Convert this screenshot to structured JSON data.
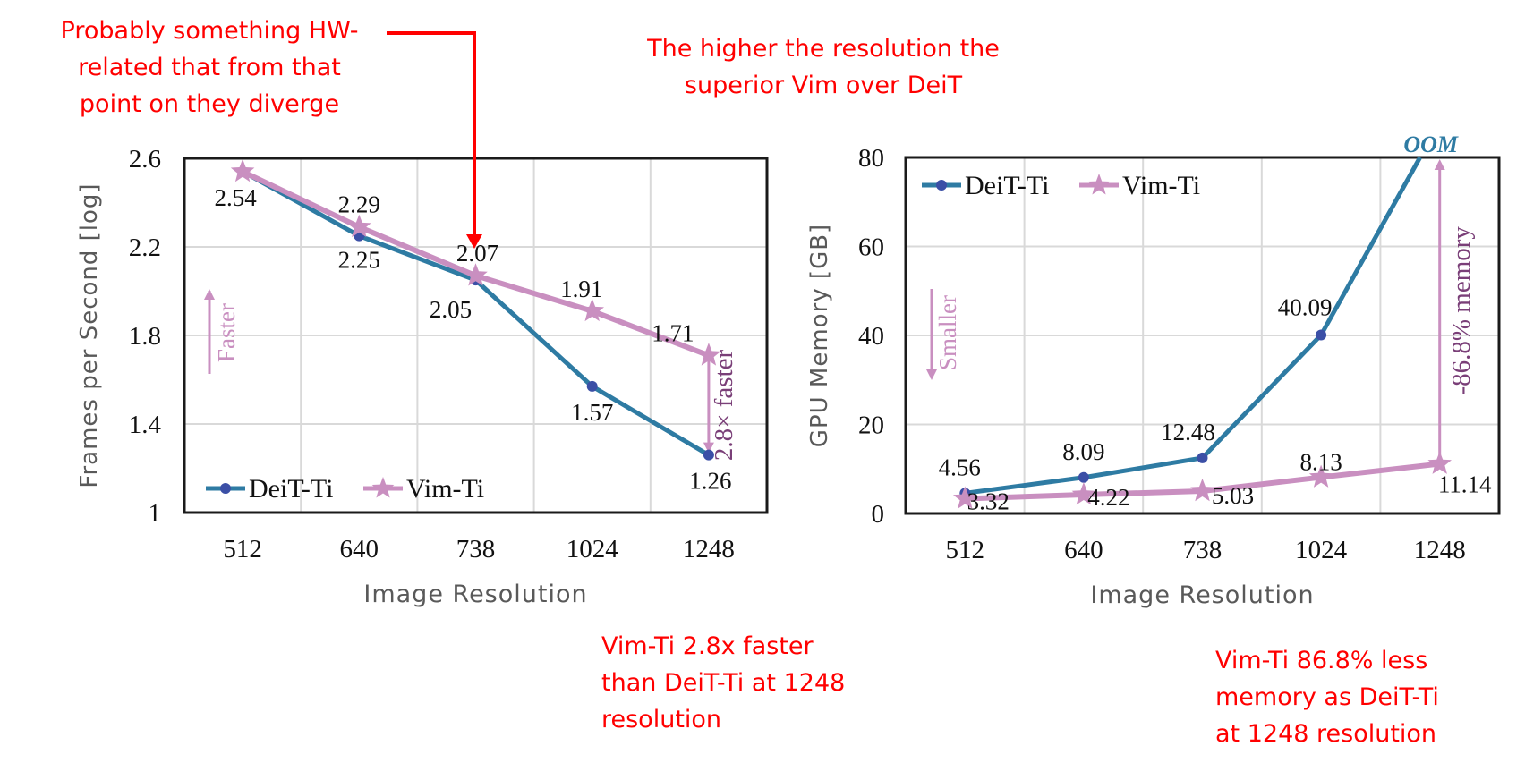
{
  "colors": {
    "deit": "#2e7ba3",
    "deit_marker": "#3b4fa6",
    "vim": "#c98fc0",
    "annotation": "#ff0000",
    "grid": "#d9d9d9",
    "axis": "#1a1a1a",
    "axis_label": "#595959",
    "callout_text": "#7a3f78"
  },
  "annotations": {
    "top_left": "Probably something HW-\nrelated that from that\npoint on they diverge",
    "top_center": "The higher the resolution the\nsuperior Vim over DeiT",
    "bottom_center": "Vim-Ti 2.8x faster\nthan DeiT-Ti at 1248\nresolution",
    "bottom_right": "Vim-Ti 86.8% less\nmemory as DeiT-Ti\nat 1248 resolution"
  },
  "chart_data": [
    {
      "type": "line",
      "title": "",
      "xlabel": "Image Resolution",
      "ylabel": "Frames per Second [log]",
      "categories": [
        "512",
        "640",
        "738",
        "1024",
        "1248"
      ],
      "ylim": [
        1,
        2.6
      ],
      "yticks": [
        1,
        1.4,
        1.8,
        2.2,
        2.6
      ],
      "ytick_labels": [
        "1",
        "1.4",
        "1.8",
        "2.2",
        "2.6"
      ],
      "grid": true,
      "legend": "bottom-left",
      "series": [
        {
          "name": "DeiT-Ti",
          "marker": "circle",
          "values": [
            2.54,
            2.25,
            2.05,
            1.57,
            1.26
          ],
          "labels": [
            "",
            "2.25",
            "2.05",
            "1.57",
            "1.26"
          ]
        },
        {
          "name": "Vim-Ti",
          "marker": "star",
          "values": [
            2.54,
            2.29,
            2.07,
            1.91,
            1.71
          ],
          "labels": [
            "2.54",
            "2.29",
            "2.07",
            "1.91",
            "1.71"
          ]
        }
      ],
      "direction_hint": {
        "text": "Faster",
        "direction": "up"
      },
      "callout": {
        "text": "2.8× faster",
        "category": "1248",
        "from": 1.71,
        "to": 1.26
      }
    },
    {
      "type": "line",
      "title": "",
      "xlabel": "Image Resolution",
      "ylabel": "GPU Memory [GB]",
      "categories": [
        "512",
        "640",
        "738",
        "1024",
        "1248"
      ],
      "ylim": [
        0,
        80
      ],
      "yticks": [
        0,
        20,
        40,
        60,
        80
      ],
      "ytick_labels": [
        "0",
        "20",
        "40",
        "60",
        "80"
      ],
      "grid": true,
      "legend": "top-left",
      "series": [
        {
          "name": "DeiT-Ti",
          "marker": "circle",
          "values": [
            4.56,
            8.09,
            12.48,
            40.09,
            null
          ],
          "labels": [
            "4.56",
            "8.09",
            "12.48",
            "40.09",
            "OOM"
          ]
        },
        {
          "name": "Vim-Ti",
          "marker": "star",
          "values": [
            3.32,
            4.22,
            5.03,
            8.13,
            11.14
          ],
          "labels": [
            "3.32",
            "4.22",
            "5.03",
            "8.13",
            "11.14"
          ]
        }
      ],
      "oom_label": "OOM",
      "direction_hint": {
        "text": "Smaller",
        "direction": "down"
      },
      "callout": {
        "text": "-86.8% memory",
        "category": "1248",
        "from": 11.14,
        "to": 80
      }
    }
  ]
}
